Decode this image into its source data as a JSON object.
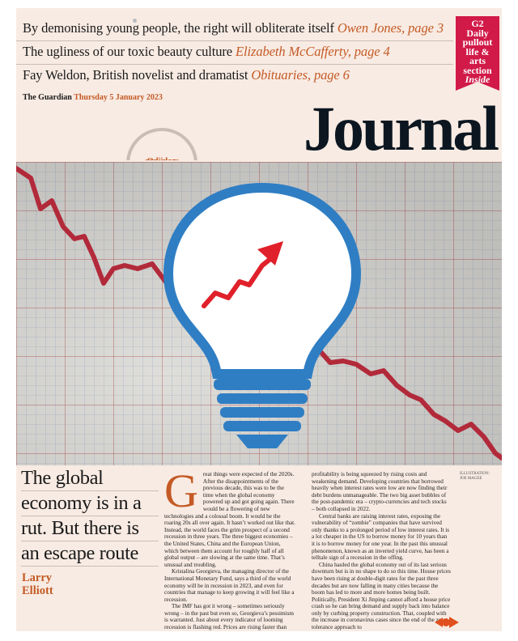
{
  "teasers": [
    {
      "text": "By demonising young people, the right will obliterate itself ",
      "credit": "Owen Jones, page 3"
    },
    {
      "text": "The ugliness of our toxic beauty culture ",
      "credit": "Elizabeth McCafferty, page 4"
    },
    {
      "text": "Fay Weldon, British novelist and dramatist ",
      "credit": "Obituaries, page 6"
    }
  ],
  "ribbon": {
    "line1": "G2",
    "line2": "Daily",
    "line3": "pullout",
    "line4": "life &",
    "line5": "arts",
    "line6": "section",
    "line7": "Inside"
  },
  "masthead": {
    "paper": "The Guardian",
    "date": "Thursday 5 January 2023",
    "section": "Journal"
  },
  "badge": {
    "line1": "Opinion",
    "line2": "and ideas"
  },
  "illustration_credit": {
    "line1": "ILLUSTRATION:",
    "line2": "JOE MAGEE"
  },
  "colors": {
    "accent": "#c45a25",
    "ribbon": "#d11a48",
    "paper": "#f8ebe3",
    "bulb": "#2f7ec4",
    "trend": "#b22a3a"
  },
  "article": {
    "headline": [
      "The global",
      "economy is in a",
      "rut. But there is",
      "an escape route"
    ],
    "author": [
      "Larry",
      "Elliott"
    ],
    "dropcap": "G",
    "col1": [
      "reat things were expected of the 2020s. After the disappointments of the previous decade, this was to be the time when the global economy powered up and got going again. There would be a flowering of new technologies and a colossal boom. It would be the roaring 20s all over again. It hasn’t worked out like that. Instead, the world faces the grim prospect of a second recession in three years. The three biggest economies – the United States, China and the European Union, which between them account for roughly half of all global output – are slowing at the same time. That’s unusual and troubling.",
      "Kristalina Georgieva, the managing director of the International Monetary Fund, says a third of the world economy will be in recession in 2023, and even for countries that manage to keep growing it will feel like a recession.",
      "The IMF has got it wrong – sometimes seriously wrong – in the past but even so, Georgieva’s pessimism is warranted. Just about every indicator of looming recession is flashing red. Prices are rising faster than wages, reducing consumer spending power. Corporate"
    ],
    "col2": [
      "profitability is being squeezed by rising costs and weakening demand. Developing countries that borrowed heavily when interest rates were low are now finding their debt burdens unmanageable. The two big asset bubbles of the post-pandemic era – crypto-currencies and tech stocks – both collapsed in 2022.",
      "Central banks are raising interest rates, exposing the vulnerability of “zombie” companies that have survived only thanks to a prolonged period of low interest rates. It is a lot cheaper in the US to borrow money for 10 years than it is to borrow money for one year. In the past this unusual phenomenon, known as an inverted yield curve, has been a telltale sign of a recession in the offing.",
      "China hauled the global economy out of its last serious downturn but is in no shape to do so this time. House prices have been rising at double-digit rates for the past three decades but are now falling in many cities because the boom has led to more and more homes being built. Politically, President Xi Jinping cannot afford a house price crash so he can bring demand and supply back into balance only by curbing property construction. That, coupled with the increase in coronavirus cases since the end of the zero-tolerance approach to"
    ]
  }
}
